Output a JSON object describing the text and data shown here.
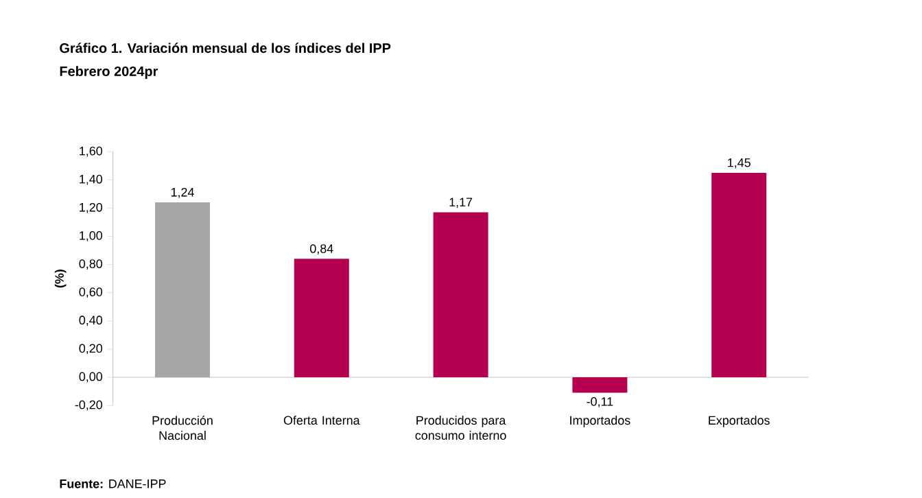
{
  "chart_data": {
    "type": "bar",
    "title": "Gráfico 1. Variación mensual de los índices del IPP",
    "subtitle": "Febrero 2024pr",
    "ylabel": "(%)",
    "categories": [
      "Producción Nacional",
      "Oferta Interna",
      "Producidos para consumo interno",
      "Importados",
      "Exportados"
    ],
    "values": [
      1.24,
      0.84,
      1.17,
      -0.11,
      1.45
    ],
    "colors": [
      "#a6a6a6",
      "#b5004f",
      "#b5004f",
      "#b5004f",
      "#b5004f"
    ],
    "value_labels": [
      "1,24",
      "0,84",
      "1,17",
      "-0,11",
      "1,45"
    ],
    "ylim": [
      -0.2,
      1.6
    ],
    "yticks": [
      {
        "value": -0.2,
        "label": "-0,20"
      },
      {
        "value": 0,
        "label": "0,00"
      },
      {
        "value": 0.2,
        "label": "0,20"
      },
      {
        "value": 0.4,
        "label": "0,40"
      },
      {
        "value": 0.6,
        "label": "0,60"
      },
      {
        "value": 0.8,
        "label": "0,80"
      },
      {
        "value": 1.0,
        "label": "1,00"
      },
      {
        "value": 1.2,
        "label": "1,20"
      },
      {
        "value": 1.4,
        "label": "1,40"
      },
      {
        "value": 1.6,
        "label": "1,60"
      }
    ],
    "annotations": [
      "**Fuente:** DANE-IPP"
    ]
  }
}
